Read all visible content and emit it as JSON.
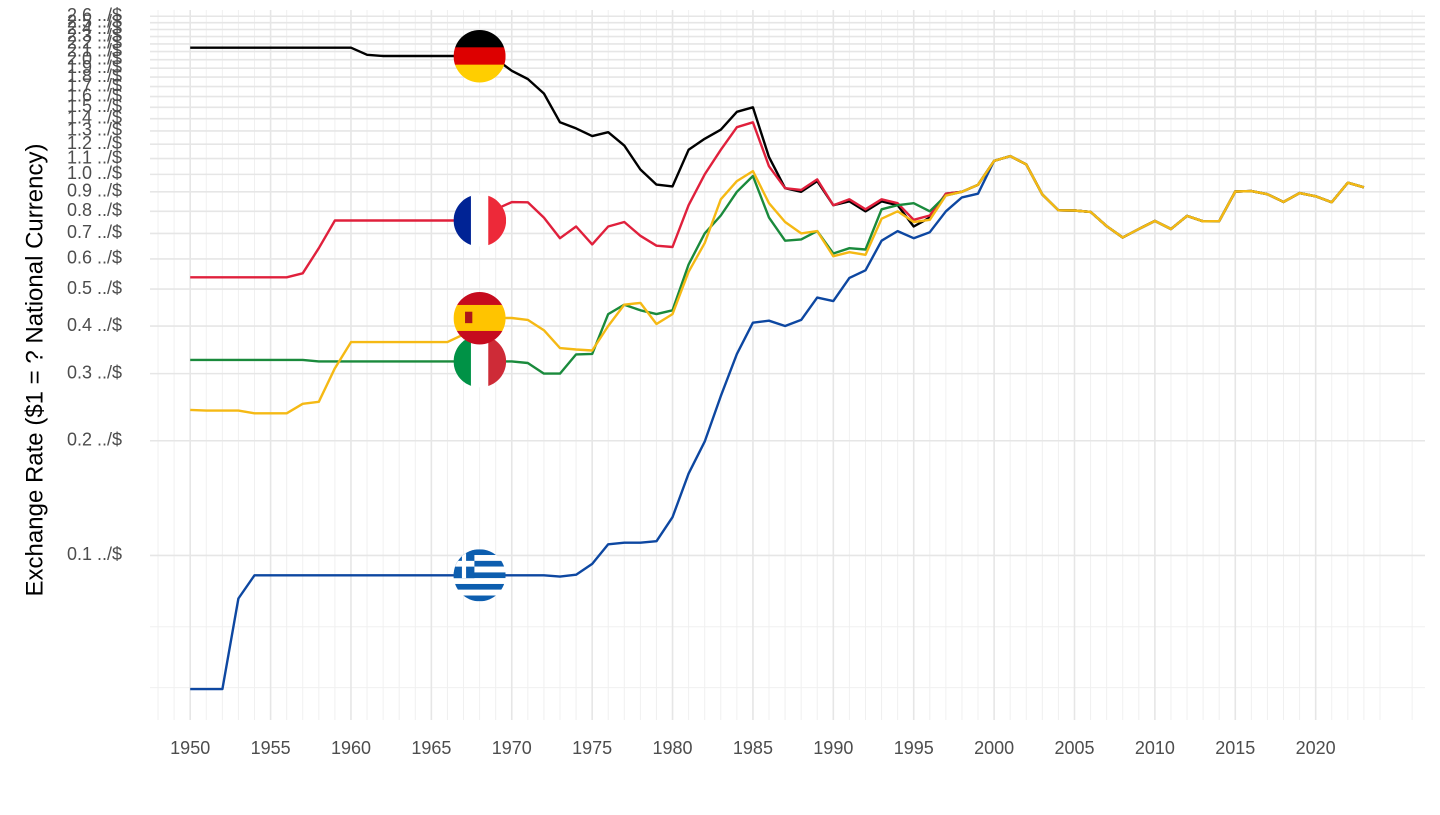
{
  "chart_data": {
    "type": "line",
    "y_label": "Exchange Rate ($1 = ? National Currency)",
    "x": [
      1950,
      1951,
      1952,
      1953,
      1954,
      1955,
      1956,
      1957,
      1958,
      1959,
      1960,
      1961,
      1962,
      1963,
      1964,
      1965,
      1966,
      1967,
      1968,
      1969,
      1970,
      1971,
      1972,
      1973,
      1974,
      1975,
      1976,
      1977,
      1978,
      1979,
      1980,
      1981,
      1982,
      1983,
      1984,
      1985,
      1986,
      1987,
      1988,
      1989,
      1990,
      1991,
      1992,
      1993,
      1994,
      1995,
      1996,
      1997,
      1998,
      1999,
      2000,
      2001,
      2002,
      2003,
      2004,
      2005,
      2006,
      2007,
      2008,
      2009,
      2010,
      2011,
      2012,
      2013,
      2014,
      2015,
      2016,
      2017,
      2018,
      2019,
      2020,
      2021,
      2022,
      2023
    ],
    "series": [
      {
        "color": "#0d47a1",
        "values": [
          0.0446,
          0.0446,
          0.0446,
          0.0771,
          0.0887,
          0.0887,
          0.0887,
          0.0887,
          0.0887,
          0.0887,
          0.0887,
          0.0887,
          0.0887,
          0.0887,
          0.0887,
          0.0887,
          0.0887,
          0.0887,
          0.0887,
          0.0887,
          0.0887,
          0.0887,
          0.0887,
          0.088,
          0.089,
          0.095,
          0.107,
          0.108,
          0.108,
          0.109,
          0.126,
          0.164,
          0.199,
          0.262,
          0.338,
          0.408,
          0.413,
          0.4,
          0.415,
          0.475,
          0.465,
          0.535,
          0.56,
          0.67,
          0.71,
          0.68,
          0.705,
          0.8,
          0.87,
          0.89,
          1.085,
          1.117,
          1.062,
          0.886,
          0.805,
          0.804,
          0.797,
          0.731,
          0.683,
          0.719,
          0.755,
          0.719,
          0.778,
          0.753,
          0.754,
          0.902,
          0.904,
          0.887,
          0.847,
          0.893,
          0.876,
          0.845,
          0.951,
          0.925
        ]
      },
      {
        "color": "#000000",
        "values": [
          2.15,
          2.15,
          2.15,
          2.15,
          2.15,
          2.15,
          2.15,
          2.15,
          2.15,
          2.15,
          2.15,
          2.06,
          2.045,
          2.045,
          2.045,
          2.045,
          2.045,
          2.045,
          2.045,
          2.01,
          1.87,
          1.78,
          1.63,
          1.37,
          1.32,
          1.26,
          1.29,
          1.19,
          1.03,
          0.94,
          0.93,
          1.16,
          1.24,
          1.31,
          1.46,
          1.5,
          1.11,
          0.92,
          0.9,
          0.96,
          0.83,
          0.85,
          0.8,
          0.85,
          0.83,
          0.73,
          0.77,
          0.89,
          0.9,
          0.939,
          1.085,
          1.117,
          1.062,
          0.886,
          0.805,
          0.804,
          0.797,
          0.731,
          0.683,
          0.719,
          0.755,
          0.719,
          0.778,
          0.753,
          0.754,
          0.902,
          0.904,
          0.887,
          0.847,
          0.893,
          0.876,
          0.845,
          0.951,
          0.925
        ]
      },
      {
        "color": "#e0203c",
        "values": [
          0.537,
          0.537,
          0.537,
          0.537,
          0.537,
          0.537,
          0.537,
          0.55,
          0.64,
          0.757,
          0.757,
          0.757,
          0.757,
          0.757,
          0.757,
          0.757,
          0.757,
          0.757,
          0.757,
          0.81,
          0.846,
          0.845,
          0.77,
          0.68,
          0.73,
          0.655,
          0.73,
          0.75,
          0.69,
          0.65,
          0.645,
          0.83,
          1.0,
          1.16,
          1.33,
          1.37,
          1.05,
          0.92,
          0.91,
          0.97,
          0.83,
          0.86,
          0.81,
          0.86,
          0.84,
          0.76,
          0.78,
          0.89,
          0.9,
          0.939,
          1.085,
          1.117,
          1.062,
          0.886,
          0.805,
          0.804,
          0.797,
          0.731,
          0.683,
          0.719,
          0.755,
          0.719,
          0.778,
          0.753,
          0.754,
          0.902,
          0.904,
          0.887,
          0.847,
          0.893,
          0.876,
          0.845,
          0.951,
          0.925
        ]
      },
      {
        "color": "#1a8a3c",
        "values": [
          0.326,
          0.326,
          0.326,
          0.326,
          0.326,
          0.326,
          0.326,
          0.326,
          0.323,
          0.323,
          0.323,
          0.323,
          0.323,
          0.323,
          0.323,
          0.323,
          0.323,
          0.323,
          0.323,
          0.323,
          0.323,
          0.32,
          0.3,
          0.3,
          0.337,
          0.338,
          0.43,
          0.455,
          0.44,
          0.43,
          0.44,
          0.58,
          0.7,
          0.78,
          0.9,
          0.99,
          0.77,
          0.67,
          0.675,
          0.71,
          0.62,
          0.64,
          0.635,
          0.81,
          0.83,
          0.84,
          0.8,
          0.88,
          0.9,
          0.939,
          1.085,
          1.117,
          1.062,
          0.886,
          0.805,
          0.804,
          0.797,
          0.731,
          0.683,
          0.719,
          0.755,
          0.719,
          0.778,
          0.753,
          0.754,
          0.902,
          0.904,
          0.887,
          0.847,
          0.893,
          0.876,
          0.845,
          0.951,
          0.925
        ]
      },
      {
        "color": "#f5b914",
        "values": [
          0.241,
          0.24,
          0.24,
          0.24,
          0.236,
          0.236,
          0.236,
          0.25,
          0.253,
          0.31,
          0.363,
          0.363,
          0.363,
          0.363,
          0.363,
          0.363,
          0.363,
          0.38,
          0.42,
          0.42,
          0.42,
          0.415,
          0.39,
          0.35,
          0.347,
          0.345,
          0.4,
          0.455,
          0.46,
          0.405,
          0.43,
          0.555,
          0.66,
          0.86,
          0.96,
          1.02,
          0.84,
          0.75,
          0.7,
          0.71,
          0.61,
          0.625,
          0.615,
          0.765,
          0.8,
          0.75,
          0.76,
          0.88,
          0.9,
          0.939,
          1.085,
          1.117,
          1.062,
          0.886,
          0.805,
          0.804,
          0.797,
          0.731,
          0.683,
          0.719,
          0.755,
          0.719,
          0.778,
          0.753,
          0.754,
          0.902,
          0.904,
          0.887,
          0.847,
          0.893,
          0.876,
          0.845,
          0.951,
          0.925
        ]
      }
    ],
    "xlim": [
      1947.5,
      2026.8
    ],
    "xticks": [
      1950,
      1955,
      1960,
      1965,
      1970,
      1975,
      1980,
      1985,
      1990,
      1995,
      2000,
      2005,
      2010,
      2015,
      2020
    ],
    "ylim": [
      0.037,
      2.7
    ],
    "log_y": true,
    "grid": true,
    "yticks": [
      {
        "value": 0.1,
        "label": "0.1 ../$"
      },
      {
        "value": 0.2,
        "label": "0.2 ../$"
      },
      {
        "value": 0.3,
        "label": "0.3 ../$"
      },
      {
        "value": 0.4,
        "label": "0.4 ../$"
      },
      {
        "value": 0.5,
        "label": "0.5 ../$"
      },
      {
        "value": 0.6,
        "label": "0.6 ../$"
      },
      {
        "value": 0.7,
        "label": "0.7 ../$"
      },
      {
        "value": 0.8,
        "label": "0.8 ../$"
      },
      {
        "value": 0.9,
        "label": "0.9 ../$"
      },
      {
        "value": 1.0,
        "label": "1.0 ../$"
      },
      {
        "value": 1.1,
        "label": "1.1 ../$"
      },
      {
        "value": 1.2,
        "label": "1.2 ../$"
      },
      {
        "value": 1.3,
        "label": "1.3 ../$"
      },
      {
        "value": 1.4,
        "label": "1.4 ../$"
      },
      {
        "value": 1.5,
        "label": "1.5 ../$"
      },
      {
        "value": 1.6,
        "label": "1.6 ../$"
      },
      {
        "value": 1.7,
        "label": "1.7 ../$"
      },
      {
        "value": 1.8,
        "label": "1.8 ../$"
      },
      {
        "value": 1.9,
        "label": "1.9 ../$"
      },
      {
        "value": 2.0,
        "label": "2.0 ../$"
      },
      {
        "value": 2.1,
        "label": "2.1 ../$"
      },
      {
        "value": 2.2,
        "label": "2.2 ../$"
      },
      {
        "value": 2.3,
        "label": "2.3 ../$"
      },
      {
        "value": 2.4,
        "label": "2.4 ../$"
      },
      {
        "value": 2.5,
        "label": "2.5 ../$"
      },
      {
        "value": 2.6,
        "label": "2.6 ../$"
      }
    ]
  }
}
